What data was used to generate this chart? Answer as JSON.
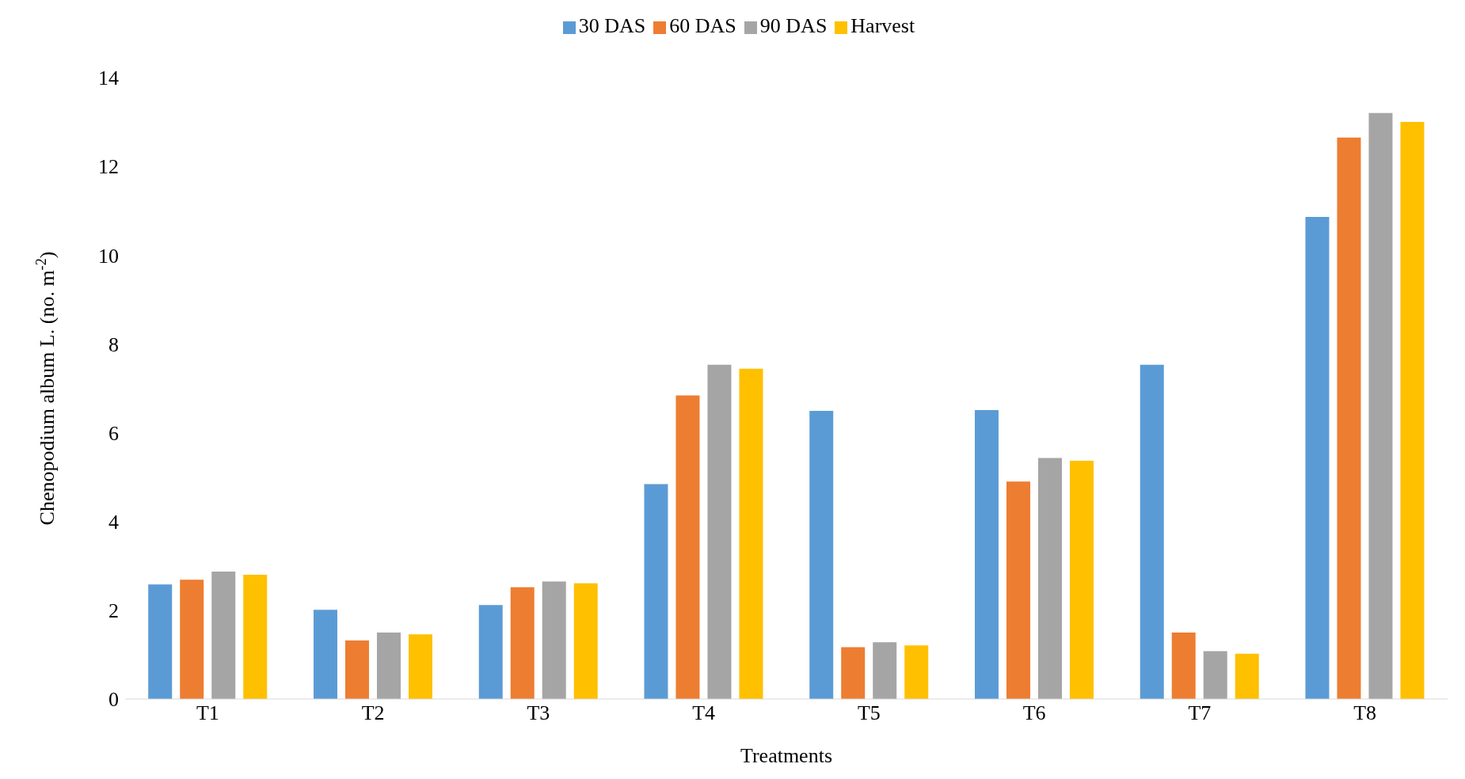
{
  "chart_data": {
    "type": "bar",
    "xlabel": "Treatments",
    "ylabel": "Chenopodium album L. (no. m$^{-2}$)",
    "categories": [
      "T1",
      "T2",
      "T3",
      "T4",
      "T5",
      "T6",
      "T7",
      "T8"
    ],
    "series": [
      {
        "name": "30 DAS",
        "color": "#5b9bd5",
        "values": [
          2.58,
          2.01,
          2.12,
          4.84,
          6.49,
          6.51,
          7.53,
          10.86
        ]
      },
      {
        "name": "60 DAS",
        "color": "#ed7d31",
        "values": [
          2.69,
          1.32,
          2.52,
          6.84,
          1.17,
          4.9,
          1.5,
          12.65
        ]
      },
      {
        "name": "90 DAS",
        "color": "#a5a5a5",
        "values": [
          2.87,
          1.5,
          2.65,
          7.53,
          1.28,
          5.43,
          1.08,
          13.2
        ]
      },
      {
        "name": "Harvest",
        "color": "#ffc000",
        "values": [
          2.8,
          1.46,
          2.61,
          7.44,
          1.21,
          5.37,
          1.02,
          13.0
        ]
      }
    ],
    "ylim": [
      0,
      14
    ],
    "yticks": [
      0,
      2,
      4,
      6,
      8,
      10,
      12,
      14
    ],
    "grid": false,
    "legend": "top"
  }
}
